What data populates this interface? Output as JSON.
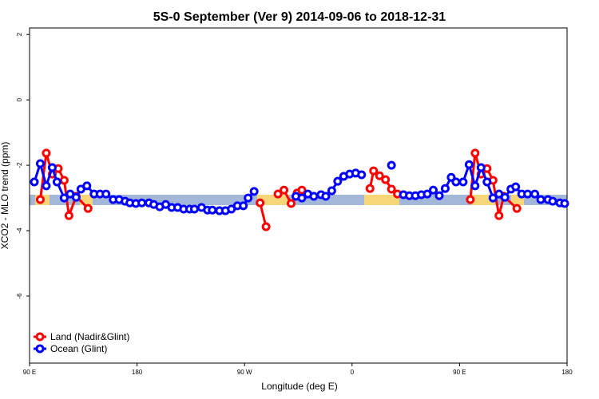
{
  "chart_data": {
    "type": "line",
    "title": "5S-0 September (Ver 9)   2014-09-06 to 2018-12-31",
    "xlabel": "Longitude (deg E)",
    "ylabel": "XCO2 - MLO trend (ppm)",
    "xlim": [
      90,
      540
    ],
    "ylim": [
      -8.05,
      2.2
    ],
    "xticks": [
      {
        "value": 90,
        "label": "90 E"
      },
      180,
      {
        "value": 270,
        "label": "90 W"
      },
      {
        "value": 360,
        "label": "0"
      },
      {
        "value": 450,
        "label": "90 E"
      },
      {
        "value": 540,
        "label": "180"
      }
    ],
    "yticks": [
      -6,
      -4,
      -2,
      0,
      2
    ],
    "legend": "bottom-left",
    "series": [
      {
        "name": "Land (Nadir&Glint)",
        "color": "#ff0000",
        "x": [
          99,
          104,
          109,
          114,
          119,
          123,
          129,
          139,
          null,
          283,
          288,
          null,
          298,
          303,
          309,
          314,
          318,
          null,
          375,
          378,
          383,
          388,
          393,
          398,
          null,
          459,
          463,
          468,
          473,
          478,
          483,
          487,
          498
        ],
        "values": [
          -3.05,
          -1.63,
          -2.27,
          -2.1,
          -2.46,
          -3.54,
          -2.95,
          -3.32,
          null,
          -3.15,
          -3.88,
          null,
          -2.88,
          -2.76,
          -3.17,
          -2.85,
          -2.76,
          null,
          -2.71,
          -2.17,
          -2.32,
          -2.44,
          -2.73,
          -2.88,
          null,
          -3.05,
          -1.63,
          -2.27,
          -2.1,
          -2.46,
          -3.54,
          -2.95,
          -3.32
        ]
      },
      {
        "name": "Ocean (Glint)",
        "color": "#0000ff",
        "x": [
          94,
          99,
          104,
          109,
          113,
          119,
          124,
          129,
          133,
          138,
          144,
          149,
          154,
          160,
          165,
          170,
          174,
          179,
          184,
          190,
          194,
          199,
          204,
          209,
          214,
          219,
          224,
          228,
          234,
          239,
          243,
          249,
          254,
          259,
          264,
          269,
          273,
          278,
          null,
          313,
          318,
          323,
          328,
          334,
          338,
          343,
          348,
          353,
          358,
          363,
          368,
          null,
          393,
          null,
          403,
          408,
          413,
          418,
          423,
          428,
          433,
          438,
          443,
          447,
          453,
          458,
          463,
          468,
          473,
          478,
          483,
          488,
          493,
          497,
          502,
          507,
          513,
          518,
          524,
          528,
          534,
          538
        ],
        "values": [
          -2.51,
          -1.95,
          -2.63,
          -2.07,
          -2.51,
          -3.0,
          -2.88,
          -2.98,
          -2.73,
          -2.63,
          -2.88,
          -2.88,
          -2.88,
          -3.05,
          -3.05,
          -3.1,
          -3.15,
          -3.17,
          -3.15,
          -3.15,
          -3.2,
          -3.27,
          -3.2,
          -3.29,
          -3.29,
          -3.34,
          -3.34,
          -3.34,
          -3.29,
          -3.37,
          -3.37,
          -3.39,
          -3.39,
          -3.34,
          -3.24,
          -3.24,
          -3.0,
          -2.8,
          null,
          -2.95,
          -3.0,
          -2.88,
          -2.95,
          -2.9,
          -2.95,
          -2.78,
          -2.49,
          -2.34,
          -2.27,
          -2.24,
          -2.29,
          null,
          -2.0,
          null,
          -2.9,
          -2.93,
          -2.93,
          -2.9,
          -2.88,
          -2.76,
          -2.93,
          -2.71,
          -2.37,
          -2.51,
          -2.51,
          -1.98,
          -2.63,
          -2.07,
          -2.51,
          -3.0,
          -2.88,
          -2.98,
          -2.73,
          -2.66,
          -2.88,
          -2.88,
          -2.88,
          -3.05,
          -3.05,
          -3.1,
          -3.15,
          -3.17
        ]
      }
    ]
  }
}
